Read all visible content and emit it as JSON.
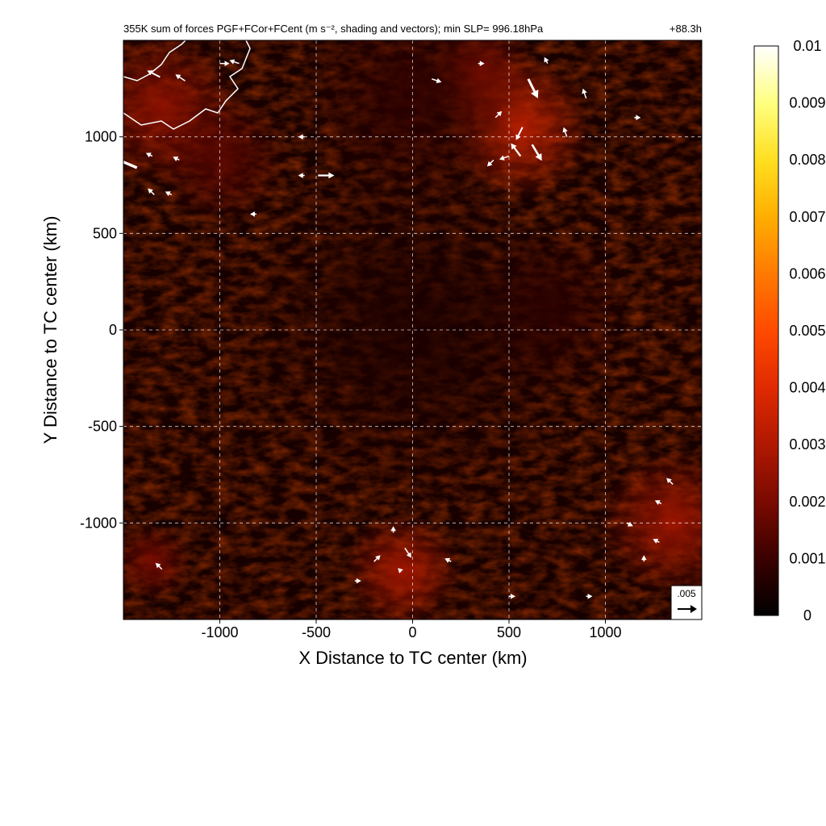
{
  "chart_data": {
    "type": "heatmap",
    "title": "355K sum of forces PGF+FCor+FCent (m s⁻², shading and vectors); min SLP= 996.18hPa",
    "time_label": "+88.3h",
    "xlabel": "X Distance to TC center (km)",
    "ylabel": "Y Distance to TC center (km)",
    "xlim": [
      -1500,
      1500
    ],
    "ylim": [
      -1500,
      1500
    ],
    "x_ticks": [
      -1000,
      -500,
      0,
      500,
      1000
    ],
    "y_ticks": [
      -1000,
      -500,
      0,
      500,
      1000
    ],
    "x_tick_labels": [
      "-1000",
      "-500",
      "0",
      "500",
      "1000"
    ],
    "y_tick_labels": [
      "-1000",
      "-500",
      "0",
      "500",
      "1000"
    ],
    "grid": true,
    "colorbar": {
      "min": 0,
      "max": 0.01,
      "ticks": [
        0,
        0.001,
        0.002,
        0.003,
        0.004,
        0.005,
        0.006,
        0.007,
        0.008,
        0.009,
        0.01
      ],
      "tick_labels": [
        "0",
        "0.001",
        "0.002",
        "0.003",
        "0.004",
        "0.005",
        "0.006",
        "0.007",
        "0.008",
        "0.009",
        "0.01"
      ],
      "colors": [
        "#000000",
        "#3a0000",
        "#7a0a00",
        "#b01800",
        "#e02a00",
        "#ff4a00",
        "#ff7a00",
        "#ffae00",
        "#ffdf20",
        "#ffff80",
        "#ffffff"
      ]
    },
    "reference_vector": {
      "label": ".005",
      "magnitude": 0.005
    },
    "hotspots": [
      {
        "x": 550,
        "y": 1050,
        "r": 380,
        "v": 0.0035
      },
      {
        "x": 350,
        "y": 1320,
        "r": 280,
        "v": 0.0025
      },
      {
        "x": -1300,
        "y": 1150,
        "r": 400,
        "v": 0.0025
      },
      {
        "x": -1000,
        "y": 900,
        "r": 350,
        "v": 0.0015
      },
      {
        "x": 0,
        "y": 1200,
        "r": 600,
        "v": 0.0008
      },
      {
        "x": -50,
        "y": -1250,
        "r": 300,
        "v": 0.003
      },
      {
        "x": 1350,
        "y": -1000,
        "r": 380,
        "v": 0.0028
      },
      {
        "x": -1350,
        "y": -1200,
        "r": 200,
        "v": 0.002
      },
      {
        "x": 700,
        "y": 100,
        "r": 450,
        "v": 0.0008
      },
      {
        "x": 0,
        "y": 0,
        "r": 900,
        "v": 0.0005
      }
    ],
    "vectors": [
      {
        "x": -1430,
        "y": 840,
        "u": -0.007,
        "v": 0.003
      },
      {
        "x": -1310,
        "y": 1310,
        "u": -0.004,
        "v": 0.002
      },
      {
        "x": -1180,
        "y": 1290,
        "u": -0.003,
        "v": 0.002
      },
      {
        "x": -1000,
        "y": 1380,
        "u": 0.003,
        "v": 0
      },
      {
        "x": -900,
        "y": 1380,
        "u": -0.003,
        "v": 0.001
      },
      {
        "x": -1350,
        "y": 900,
        "u": -0.002,
        "v": 0.001
      },
      {
        "x": -1340,
        "y": 700,
        "u": -0.002,
        "v": 0.002
      },
      {
        "x": -1210,
        "y": 880,
        "u": -0.002,
        "v": 0.001
      },
      {
        "x": -1250,
        "y": 700,
        "u": -0.002,
        "v": 0.001
      },
      {
        "x": -490,
        "y": 800,
        "u": 0.005,
        "v": 0
      },
      {
        "x": -560,
        "y": 800,
        "u": -0.002,
        "v": 0
      },
      {
        "x": -560,
        "y": 1000,
        "u": -0.002,
        "v": 0
      },
      {
        "x": -810,
        "y": 600,
        "u": -0.002,
        "v": 0
      },
      {
        "x": 100,
        "y": 1300,
        "u": 0.003,
        "v": -0.001
      },
      {
        "x": 600,
        "y": 1300,
        "u": 0.003,
        "v": -0.006
      },
      {
        "x": 570,
        "y": 1050,
        "u": -0.002,
        "v": -0.004
      },
      {
        "x": 620,
        "y": 960,
        "u": 0.003,
        "v": -0.005
      },
      {
        "x": 560,
        "y": 900,
        "u": -0.003,
        "v": 0.004
      },
      {
        "x": 500,
        "y": 900,
        "u": -0.003,
        "v": -0.001
      },
      {
        "x": 420,
        "y": 880,
        "u": -0.002,
        "v": -0.002
      },
      {
        "x": 800,
        "y": 1000,
        "u": -0.001,
        "v": 0.003
      },
      {
        "x": 900,
        "y": 1200,
        "u": -0.001,
        "v": 0.003
      },
      {
        "x": 1150,
        "y": 1100,
        "u": 0.002,
        "v": 0
      },
      {
        "x": 700,
        "y": 1380,
        "u": -0.001,
        "v": 0.002
      },
      {
        "x": 340,
        "y": 1380,
        "u": 0.002,
        "v": 0
      },
      {
        "x": 430,
        "y": 1100,
        "u": 0.002,
        "v": 0.002
      },
      {
        "x": -40,
        "y": -1130,
        "u": 0.002,
        "v": -0.003
      },
      {
        "x": -100,
        "y": -1050,
        "u": 0,
        "v": 0.002
      },
      {
        "x": -200,
        "y": -1200,
        "u": 0.002,
        "v": 0.002
      },
      {
        "x": -60,
        "y": -1250,
        "u": -0.001,
        "v": 0.001
      },
      {
        "x": 1110,
        "y": -1000,
        "u": 0.002,
        "v": -0.001
      },
      {
        "x": 1350,
        "y": -800,
        "u": -0.002,
        "v": 0.002
      },
      {
        "x": 1290,
        "y": -900,
        "u": -0.002,
        "v": 0.001
      },
      {
        "x": 1200,
        "y": -1200,
        "u": 0,
        "v": 0.002
      },
      {
        "x": 1280,
        "y": -1100,
        "u": -0.002,
        "v": 0.001
      },
      {
        "x": -1300,
        "y": -1240,
        "u": -0.002,
        "v": 0.002
      },
      {
        "x": -300,
        "y": -1300,
        "u": 0.002,
        "v": 0
      },
      {
        "x": 200,
        "y": -1200,
        "u": -0.002,
        "v": 0.001
      },
      {
        "x": 500,
        "y": -1380,
        "u": 0.002,
        "v": 0
      },
      {
        "x": 900,
        "y": -1380,
        "u": 0.002,
        "v": 0
      }
    ]
  }
}
